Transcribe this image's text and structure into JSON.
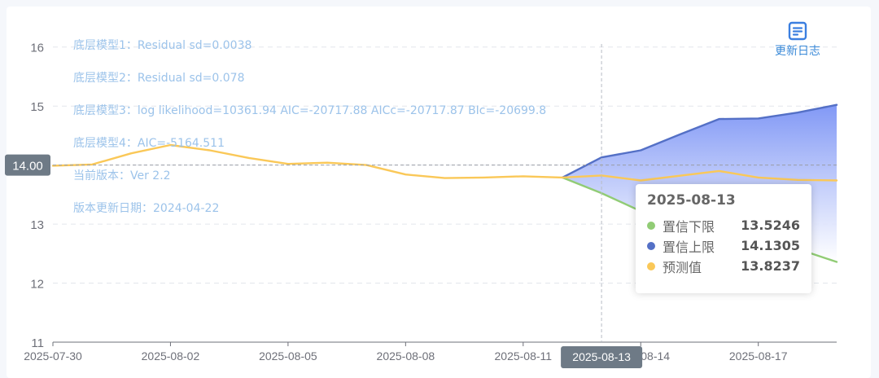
{
  "chart_data": {
    "type": "line",
    "x_ticks": [
      "2025-07-30",
      "2025-08-02",
      "2025-08-05",
      "2025-08-08",
      "2025-08-11",
      "2025-08-14",
      "2025-08-17"
    ],
    "ylim": [
      11,
      16.3
    ],
    "y_ticks": [
      11,
      12,
      13,
      14,
      15,
      16
    ],
    "grid": true,
    "x": [
      "2025-07-30",
      "2025-07-31",
      "2025-08-01",
      "2025-08-02",
      "2025-08-03",
      "2025-08-04",
      "2025-08-05",
      "2025-08-06",
      "2025-08-07",
      "2025-08-08",
      "2025-08-09",
      "2025-08-10",
      "2025-08-11",
      "2025-08-12",
      "2025-08-13",
      "2025-08-14",
      "2025-08-15",
      "2025-08-16",
      "2025-08-17",
      "2025-08-18",
      "2025-08-19"
    ],
    "series": [
      {
        "name": "置信下限",
        "color": "#91cc75",
        "values": [
          null,
          null,
          null,
          null,
          null,
          null,
          null,
          null,
          null,
          null,
          null,
          null,
          null,
          13.79,
          13.5246,
          13.22,
          13.12,
          13.06,
          12.78,
          12.58,
          12.36
        ]
      },
      {
        "name": "置信上限",
        "color": "#5470c6",
        "values": [
          null,
          null,
          null,
          null,
          null,
          null,
          null,
          null,
          null,
          null,
          null,
          null,
          null,
          13.79,
          14.1305,
          14.25,
          14.52,
          14.78,
          14.79,
          14.89,
          15.02
        ]
      },
      {
        "name": "预测值",
        "color": "#fac858",
        "values": [
          13.99,
          14.01,
          14.2,
          14.34,
          14.25,
          14.12,
          14.02,
          14.04,
          14.0,
          13.84,
          13.78,
          13.79,
          13.81,
          13.79,
          13.8237,
          13.74,
          13.82,
          13.9,
          13.79,
          13.75,
          13.74
        ]
      }
    ],
    "annotations": [
      "底层模型1：Residual sd=0.0038",
      "底层模型2：Residual sd=0.078",
      "底层模型3：log likelihood=10361.94 AIC=-20717.88 AICc=-20717.87 BIc=-20699.8",
      "底层模型4：AIC=-5164.511",
      "当前版本：Ver 2.2",
      "版本更新日期：2024-04-22"
    ],
    "crosshair": {
      "x": "2025-08-13",
      "y_label": "14.00",
      "y": 14.0
    },
    "tooltip": {
      "date": "2025-08-13",
      "rows": [
        {
          "name": "置信下限",
          "value": "13.5246",
          "color": "#91cc75"
        },
        {
          "name": "置信上限",
          "value": "14.1305",
          "color": "#5470c6"
        },
        {
          "name": "预测值",
          "value": "13.8237",
          "color": "#fac858"
        }
      ]
    }
  },
  "toolbar": {
    "changelog_label": "更新日志",
    "changelog_icon": "document-list-icon"
  }
}
